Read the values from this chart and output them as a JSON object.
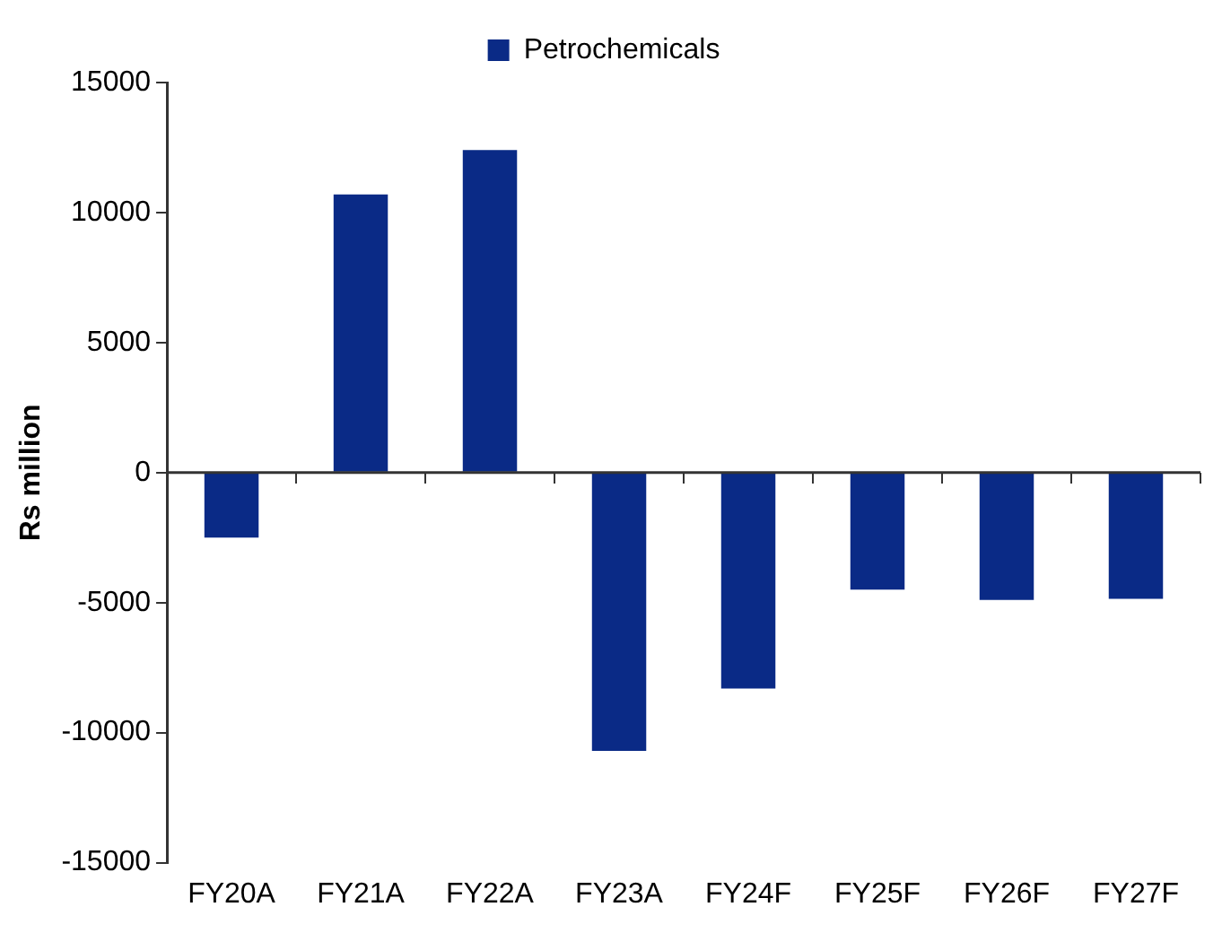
{
  "chart_data": {
    "type": "bar",
    "ylabel": "Rs million",
    "categories": [
      "FY20A",
      "FY21A",
      "FY22A",
      "FY23A",
      "FY24F",
      "FY25F",
      "FY26F",
      "FY27F"
    ],
    "series": [
      {
        "name": "Petrochemicals",
        "color": "#0a2a86",
        "values": [
          -2500,
          10700,
          12400,
          -10700,
          -8300,
          -4500,
          -4900,
          -4850
        ]
      }
    ],
    "ylim": [
      -15000,
      15000
    ],
    "yticks": [
      -15000,
      -10000,
      -5000,
      0,
      5000,
      10000,
      15000
    ],
    "grid": false,
    "ref_lines": [
      {
        "axis": "y",
        "value": 0,
        "color": "#333333"
      }
    ],
    "legend": "top"
  }
}
